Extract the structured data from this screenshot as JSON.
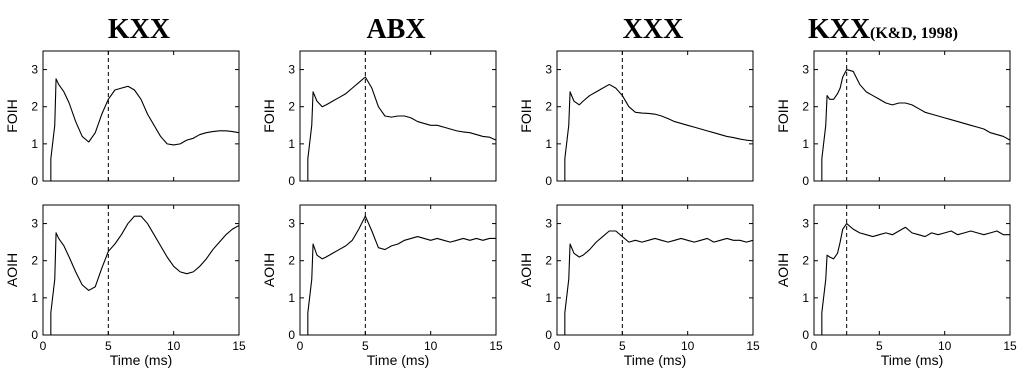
{
  "figure": {
    "column_titles": [
      {
        "main": "KXX",
        "sub": ""
      },
      {
        "main": "ABX",
        "sub": ""
      },
      {
        "main": "XXX",
        "sub": ""
      },
      {
        "main": "KXX",
        "sub": "(K&D, 1998)"
      }
    ]
  },
  "chart_data": [
    {
      "type": "line",
      "panel": "KXX-FOIH",
      "ylabel": "FOIH",
      "xlabel": "",
      "xlim": [
        0,
        15
      ],
      "ylim": [
        0,
        3.5
      ],
      "xticks": [
        0,
        5,
        10,
        15
      ],
      "yticks": [
        0,
        1,
        2,
        3
      ],
      "show_xtick_labels": false,
      "vline_x": 5,
      "x": [
        0.6,
        0.9,
        1.0,
        1.2,
        1.6,
        2.0,
        2.5,
        3.0,
        3.5,
        4.0,
        4.5,
        5.0,
        5.5,
        6.0,
        6.5,
        7.0,
        7.5,
        8.0,
        8.5,
        9.0,
        9.5,
        10.0,
        10.5,
        11.0,
        11.5,
        12.0,
        12.5,
        13.0,
        13.5,
        14.0,
        14.5,
        15.0
      ],
      "y": [
        0.6,
        1.5,
        2.75,
        2.6,
        2.4,
        2.1,
        1.6,
        1.2,
        1.05,
        1.3,
        1.8,
        2.2,
        2.45,
        2.5,
        2.55,
        2.45,
        2.2,
        1.8,
        1.5,
        1.2,
        1.0,
        0.97,
        1.0,
        1.1,
        1.15,
        1.25,
        1.3,
        1.33,
        1.35,
        1.35,
        1.33,
        1.3
      ]
    },
    {
      "type": "line",
      "panel": "ABX-FOIH",
      "ylabel": "FOIH",
      "xlabel": "",
      "xlim": [
        0,
        15
      ],
      "ylim": [
        0,
        3.5
      ],
      "xticks": [
        0,
        5,
        10,
        15
      ],
      "yticks": [
        0,
        1,
        2,
        3
      ],
      "show_xtick_labels": false,
      "vline_x": 5,
      "x": [
        0.6,
        0.9,
        1.0,
        1.3,
        1.7,
        2.0,
        2.5,
        3.0,
        3.5,
        4.0,
        4.5,
        5.0,
        5.5,
        6.0,
        6.5,
        7.0,
        7.5,
        8.0,
        8.5,
        9.0,
        9.5,
        10.0,
        10.5,
        11.0,
        11.5,
        12.0,
        12.5,
        13.0,
        13.5,
        14.0,
        14.5,
        15.0
      ],
      "y": [
        0.6,
        1.5,
        2.4,
        2.15,
        2.0,
        2.05,
        2.15,
        2.25,
        2.35,
        2.5,
        2.65,
        2.8,
        2.5,
        2.0,
        1.75,
        1.72,
        1.75,
        1.75,
        1.7,
        1.6,
        1.55,
        1.5,
        1.5,
        1.45,
        1.4,
        1.35,
        1.32,
        1.3,
        1.25,
        1.2,
        1.18,
        1.1
      ]
    },
    {
      "type": "line",
      "panel": "XXX-FOIH",
      "ylabel": "FOIH",
      "xlabel": "",
      "xlim": [
        0,
        15
      ],
      "ylim": [
        0,
        3.5
      ],
      "xticks": [
        0,
        5,
        10,
        15
      ],
      "yticks": [
        0,
        1,
        2,
        3
      ],
      "show_xtick_labels": false,
      "vline_x": 5,
      "x": [
        0.6,
        0.9,
        1.0,
        1.3,
        1.7,
        2.0,
        2.5,
        3.0,
        3.5,
        4.0,
        4.5,
        5.0,
        5.5,
        6.0,
        6.5,
        7.0,
        7.5,
        8.0,
        8.5,
        9.0,
        9.5,
        10.0,
        10.5,
        11.0,
        11.5,
        12.0,
        12.5,
        13.0,
        13.5,
        14.0,
        14.5,
        15.0
      ],
      "y": [
        0.6,
        1.5,
        2.4,
        2.15,
        2.05,
        2.15,
        2.3,
        2.4,
        2.5,
        2.6,
        2.5,
        2.3,
        2.0,
        1.85,
        1.83,
        1.82,
        1.8,
        1.75,
        1.68,
        1.6,
        1.55,
        1.5,
        1.45,
        1.4,
        1.35,
        1.3,
        1.25,
        1.2,
        1.17,
        1.13,
        1.1,
        1.08
      ]
    },
    {
      "type": "line",
      "panel": "KXX(K&D,1998)-FOIH",
      "ylabel": "FOIH",
      "xlabel": "",
      "xlim": [
        0,
        15
      ],
      "ylim": [
        0,
        3.5
      ],
      "xticks": [
        0,
        5,
        10,
        15
      ],
      "yticks": [
        0,
        1,
        2,
        3
      ],
      "show_xtick_labels": false,
      "vline_x": 2.5,
      "x": [
        0.6,
        0.9,
        1.0,
        1.2,
        1.5,
        1.8,
        2.0,
        2.2,
        2.5,
        3.0,
        3.5,
        4.0,
        4.5,
        5.0,
        5.5,
        6.0,
        6.5,
        7.0,
        7.5,
        8.0,
        8.5,
        9.0,
        9.5,
        10.0,
        10.5,
        11.0,
        11.5,
        12.0,
        12.5,
        13.0,
        13.5,
        14.0,
        14.5,
        15.0
      ],
      "y": [
        0.6,
        1.5,
        2.3,
        2.2,
        2.2,
        2.35,
        2.5,
        2.8,
        3.0,
        2.95,
        2.6,
        2.4,
        2.3,
        2.2,
        2.1,
        2.05,
        2.1,
        2.1,
        2.05,
        1.95,
        1.85,
        1.8,
        1.75,
        1.7,
        1.65,
        1.6,
        1.55,
        1.5,
        1.45,
        1.4,
        1.3,
        1.25,
        1.2,
        1.1
      ]
    },
    {
      "type": "line",
      "panel": "KXX-AOIH",
      "ylabel": "AOIH",
      "xlabel": "Time (ms)",
      "xlim": [
        0,
        15
      ],
      "ylim": [
        0,
        3.5
      ],
      "xticks": [
        0,
        5,
        10,
        15
      ],
      "yticks": [
        0,
        1,
        2,
        3
      ],
      "show_xtick_labels": true,
      "vline_x": 5,
      "x": [
        0.6,
        0.9,
        1.0,
        1.2,
        1.6,
        2.0,
        2.5,
        3.0,
        3.5,
        4.0,
        4.5,
        5.0,
        5.5,
        6.0,
        6.5,
        7.0,
        7.5,
        8.0,
        8.5,
        9.0,
        9.5,
        10.0,
        10.5,
        11.0,
        11.5,
        12.0,
        12.5,
        13.0,
        13.5,
        14.0,
        14.5,
        15.0
      ],
      "y": [
        0.6,
        1.5,
        2.75,
        2.6,
        2.4,
        2.1,
        1.7,
        1.35,
        1.2,
        1.3,
        1.8,
        2.25,
        2.45,
        2.7,
        3.0,
        3.2,
        3.2,
        3.0,
        2.7,
        2.4,
        2.1,
        1.85,
        1.7,
        1.65,
        1.7,
        1.85,
        2.05,
        2.3,
        2.5,
        2.7,
        2.85,
        2.95
      ]
    },
    {
      "type": "line",
      "panel": "ABX-AOIH",
      "ylabel": "AOIH",
      "xlabel": "Time (ms)",
      "xlim": [
        0,
        15
      ],
      "ylim": [
        0,
        3.5
      ],
      "xticks": [
        0,
        5,
        10,
        15
      ],
      "yticks": [
        0,
        1,
        2,
        3
      ],
      "show_xtick_labels": true,
      "vline_x": 5,
      "x": [
        0.6,
        0.9,
        1.0,
        1.3,
        1.7,
        2.0,
        2.5,
        3.0,
        3.5,
        4.0,
        4.5,
        5.0,
        5.5,
        6.0,
        6.5,
        7.0,
        7.5,
        8.0,
        8.5,
        9.0,
        9.5,
        10.0,
        10.5,
        11.0,
        11.5,
        12.0,
        12.5,
        13.0,
        13.5,
        14.0,
        14.5,
        15.0
      ],
      "y": [
        0.6,
        1.5,
        2.45,
        2.15,
        2.05,
        2.1,
        2.2,
        2.3,
        2.4,
        2.55,
        2.85,
        3.2,
        2.8,
        2.35,
        2.3,
        2.4,
        2.45,
        2.55,
        2.6,
        2.65,
        2.6,
        2.55,
        2.6,
        2.55,
        2.5,
        2.55,
        2.6,
        2.55,
        2.6,
        2.55,
        2.6,
        2.6
      ]
    },
    {
      "type": "line",
      "panel": "XXX-AOIH",
      "ylabel": "AOIH",
      "xlabel": "Time (ms)",
      "xlim": [
        0,
        15
      ],
      "ylim": [
        0,
        3.5
      ],
      "xticks": [
        0,
        5,
        10,
        15
      ],
      "yticks": [
        0,
        1,
        2,
        3
      ],
      "show_xtick_labels": true,
      "vline_x": 5,
      "x": [
        0.6,
        0.9,
        1.0,
        1.3,
        1.7,
        2.0,
        2.5,
        3.0,
        3.5,
        4.0,
        4.5,
        5.0,
        5.5,
        6.0,
        6.5,
        7.0,
        7.5,
        8.0,
        8.5,
        9.0,
        9.5,
        10.0,
        10.5,
        11.0,
        11.5,
        12.0,
        12.5,
        13.0,
        13.5,
        14.0,
        14.5,
        15.0
      ],
      "y": [
        0.6,
        1.5,
        2.45,
        2.2,
        2.1,
        2.15,
        2.3,
        2.5,
        2.65,
        2.8,
        2.8,
        2.65,
        2.5,
        2.55,
        2.5,
        2.55,
        2.6,
        2.55,
        2.5,
        2.55,
        2.6,
        2.55,
        2.5,
        2.55,
        2.6,
        2.5,
        2.55,
        2.6,
        2.55,
        2.55,
        2.5,
        2.55
      ]
    },
    {
      "type": "line",
      "panel": "KXX(K&D,1998)-AOIH",
      "ylabel": "AOIH",
      "xlabel": "Time (ms)",
      "xlim": [
        0,
        15
      ],
      "ylim": [
        0,
        3.5
      ],
      "xticks": [
        0,
        5,
        10,
        15
      ],
      "yticks": [
        0,
        1,
        2,
        3
      ],
      "show_xtick_labels": true,
      "vline_x": 2.5,
      "x": [
        0.6,
        0.9,
        1.0,
        1.2,
        1.5,
        1.8,
        2.0,
        2.2,
        2.5,
        3.0,
        3.5,
        4.0,
        4.5,
        5.0,
        5.5,
        6.0,
        6.5,
        7.0,
        7.5,
        8.0,
        8.5,
        9.0,
        9.5,
        10.0,
        10.5,
        11.0,
        11.5,
        12.0,
        12.5,
        13.0,
        13.5,
        14.0,
        14.5,
        15.0
      ],
      "y": [
        0.6,
        1.5,
        2.15,
        2.1,
        2.05,
        2.2,
        2.5,
        2.85,
        3.0,
        2.85,
        2.75,
        2.7,
        2.65,
        2.7,
        2.75,
        2.7,
        2.8,
        2.9,
        2.75,
        2.7,
        2.65,
        2.75,
        2.7,
        2.75,
        2.8,
        2.7,
        2.75,
        2.8,
        2.75,
        2.7,
        2.75,
        2.8,
        2.7,
        2.7
      ]
    }
  ]
}
